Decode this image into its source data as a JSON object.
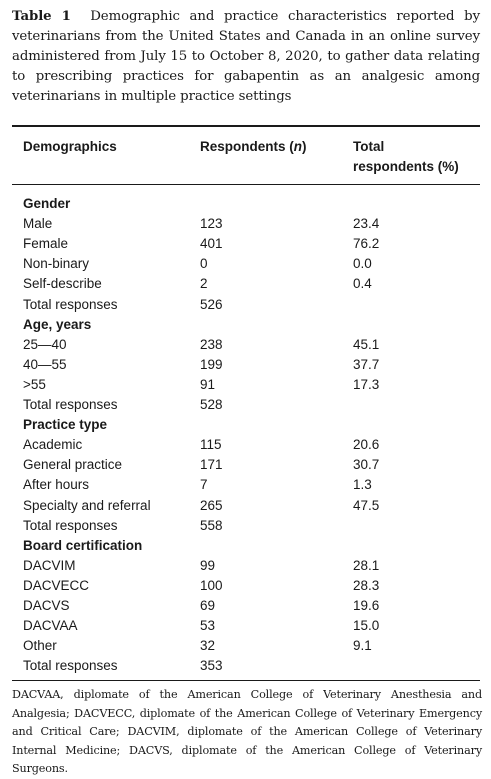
{
  "caption": {
    "label": "Table 1",
    "text": "Demographic and practice characteristics reported by veterinarians from the United States and Canada in an online survey administered from July 15 to October 8, 2020, to gather data relating to prescribing practices for gabapentin as an analgesic among veterinarians in multiple practice settings"
  },
  "header": {
    "col1": "Demographics",
    "col2_prefix": "Respondents (",
    "col2_var": "n",
    "col2_suffix": ")",
    "col3_line1": "Total",
    "col3_line2": "respondents (%)"
  },
  "rows": [
    {
      "type": "section",
      "label": "Gender",
      "n": "",
      "pct": ""
    },
    {
      "type": "data",
      "label": "Male",
      "n": "123",
      "pct": "23.4"
    },
    {
      "type": "data",
      "label": "Female",
      "n": "401",
      "pct": "76.2"
    },
    {
      "type": "data",
      "label": "Non-binary",
      "n": "0",
      "pct": "0.0"
    },
    {
      "type": "data",
      "label": "Self-describe",
      "n": "2",
      "pct": "0.4"
    },
    {
      "type": "data",
      "label": "Total responses",
      "n": "526",
      "pct": ""
    },
    {
      "type": "section",
      "label": "Age, years",
      "n": "",
      "pct": ""
    },
    {
      "type": "data",
      "label": "25—40",
      "n": "238",
      "pct": "45.1"
    },
    {
      "type": "data",
      "label": "40—55",
      "n": "199",
      "pct": "37.7"
    },
    {
      "type": "data",
      "label": ">55",
      "n": "91",
      "pct": "17.3"
    },
    {
      "type": "data",
      "label": "Total responses",
      "n": "528",
      "pct": ""
    },
    {
      "type": "section",
      "label": "Practice type",
      "n": "",
      "pct": ""
    },
    {
      "type": "data",
      "label": "Academic",
      "n": "115",
      "pct": "20.6"
    },
    {
      "type": "data",
      "label": "General practice",
      "n": "171",
      "pct": "30.7"
    },
    {
      "type": "data",
      "label": "After hours",
      "n": "7",
      "pct": "1.3"
    },
    {
      "type": "data",
      "label": "Specialty and referral",
      "n": "265",
      "pct": "47.5"
    },
    {
      "type": "data",
      "label": "Total responses",
      "n": "558",
      "pct": ""
    },
    {
      "type": "section",
      "label": "Board certification",
      "n": "",
      "pct": ""
    },
    {
      "type": "data",
      "label": "DACVIM",
      "n": "99",
      "pct": "28.1"
    },
    {
      "type": "data",
      "label": "DACVECC",
      "n": "100",
      "pct": "28.3"
    },
    {
      "type": "data",
      "label": "DACVS",
      "n": "69",
      "pct": "19.6"
    },
    {
      "type": "data",
      "label": "DACVAA",
      "n": "53",
      "pct": "15.0"
    },
    {
      "type": "data",
      "label": "Other",
      "n": "32",
      "pct": "9.1"
    },
    {
      "type": "data",
      "label": "Total responses",
      "n": "353",
      "pct": ""
    }
  ],
  "footnote": "DACVAA, diplomate of the American College of Veterinary Anesthesia and Analgesia; DACVECC, diplomate of the American College of Veterinary Emergency and Critical Care; DACVIM, diplomate of the American College of Veterinary Internal Medicine; DACVS, diplomate of the American College of Veterinary Surgeons."
}
